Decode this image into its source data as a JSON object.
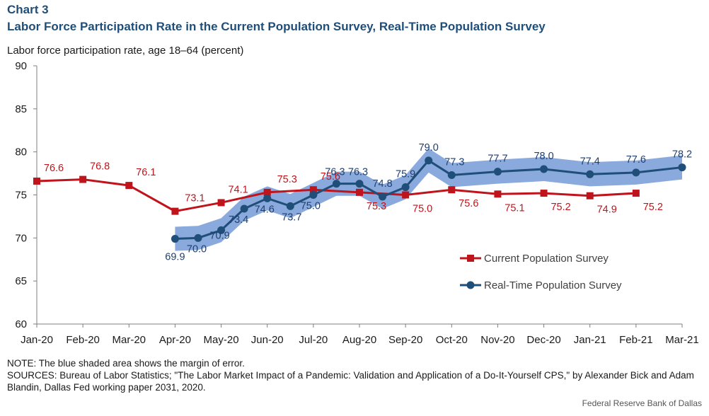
{
  "header": {
    "chart_number": "Chart 3",
    "title": "Labor Force Participation Rate in the Current Population Survey, Real-Time Population Survey"
  },
  "footer": {
    "note": "NOTE: The blue shaded area shows the margin of error.",
    "sources": "SOURCES: Bureau of Labor Statistics; \"The Labor Market Impact of a Pandemic: Validation and Application of a Do-It-Yourself CPS,\" by Alexander Bick and Adam Blandin, Dallas Fed working paper 2031, 2020.",
    "credit": "Federal Reserve Bank of Dallas"
  },
  "colors": {
    "cps": "#c0141c",
    "rps": "#1f4e79",
    "band": "#8aa9dc"
  },
  "chart_data": {
    "type": "line",
    "ylabel": "Labor force participation rate, age 18–64 (percent)",
    "ylim": [
      60,
      90
    ],
    "yticks": [
      60,
      65,
      70,
      75,
      80,
      85,
      90
    ],
    "x_ticks": [
      "Jan-20",
      "Feb-20",
      "Mar-20",
      "Apr-20",
      "May-20",
      "Jun-20",
      "Jul-20",
      "Aug-20",
      "Sep-20",
      "Oct-20",
      "Nov-20",
      "Dec-20",
      "Jan-21",
      "Feb-21",
      "Mar-21"
    ],
    "grid": false,
    "legend_position": "bottom-right",
    "series": [
      {
        "name": "Current Population Survey",
        "marker": "square",
        "points": [
          {
            "x": 0,
            "y": 76.6
          },
          {
            "x": 1,
            "y": 76.8
          },
          {
            "x": 2,
            "y": 76.1
          },
          {
            "x": 3,
            "y": 73.1
          },
          {
            "x": 4,
            "y": 74.1
          },
          {
            "x": 5,
            "y": 75.3
          },
          {
            "x": 6,
            "y": 75.6
          },
          {
            "x": 7,
            "y": 75.3
          },
          {
            "x": 8,
            "y": 75.0
          },
          {
            "x": 9,
            "y": 75.6
          },
          {
            "x": 10,
            "y": 75.1
          },
          {
            "x": 11,
            "y": 75.2
          },
          {
            "x": 12,
            "y": 74.9
          },
          {
            "x": 13,
            "y": 75.2
          }
        ]
      },
      {
        "name": "Real-Time Population Survey",
        "marker": "circle",
        "points": [
          {
            "x": 3,
            "y": 69.9
          },
          {
            "x": 3.5,
            "y": 70.0
          },
          {
            "x": 4,
            "y": 70.9
          },
          {
            "x": 4.5,
            "y": 73.4
          },
          {
            "x": 5,
            "y": 74.6
          },
          {
            "x": 5.5,
            "y": 73.7
          },
          {
            "x": 6,
            "y": 75.0
          },
          {
            "x": 6.5,
            "y": 76.3
          },
          {
            "x": 7,
            "y": 76.3
          },
          {
            "x": 7.5,
            "y": 74.8
          },
          {
            "x": 8,
            "y": 75.9
          },
          {
            "x": 8.5,
            "y": 79.0
          },
          {
            "x": 9,
            "y": 77.3
          },
          {
            "x": 10,
            "y": 77.7
          },
          {
            "x": 11,
            "y": 78.0
          },
          {
            "x": 12,
            "y": 77.4
          },
          {
            "x": 13,
            "y": 77.6
          },
          {
            "x": 14,
            "y": 78.2
          }
        ],
        "margin_of_error": 1.4
      }
    ]
  }
}
